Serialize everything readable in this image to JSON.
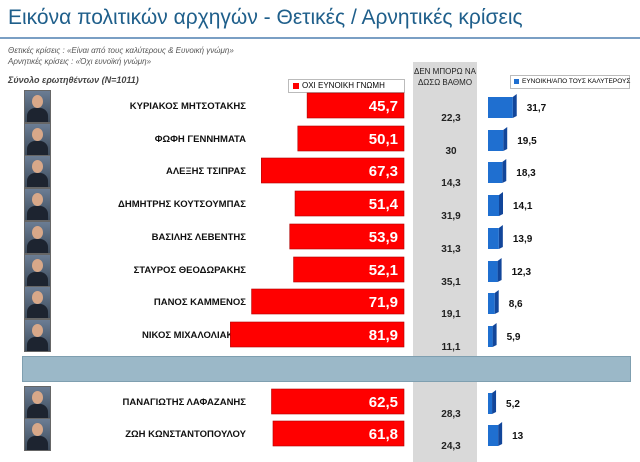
{
  "title": "Εικόνα πολιτικών αρχηγών  - Θετικές / Αρνητικές κρίσεις",
  "notes": [
    "Θετικές κρίσεις : «Είναι από τους καλύτερους & Ευνοική γνώμη»",
    "Αρνητικές κρίσεις : «Όχι ευνοϊκή γνώμη»"
  ],
  "base": "Σύνολο ερωτηθέντων (N=1011)",
  "legend": {
    "negative": "ΟΧΙ ΕΥΝΟΙΚΗ ΓΝΩΜΗ",
    "dk": "ΔΕΝ ΜΠΟΡΩ ΝΑ ΔΩΣΩ ΒΑΘΜΟ",
    "positive": "ΕΥΝΟΙΚΗ/ΑΠΟ ΤΟΥΣ ΚΑΛΥΤΕΡΟΥΣ"
  },
  "colors": {
    "negative": "#ff0000",
    "positive": "#1f6fd0",
    "dk_column": "#d9d9d9",
    "title": "#1f5f8b"
  },
  "icons": [
    "politician-photo"
  ],
  "chart_data": {
    "type": "bar",
    "categories": [
      "ΚΥΡΙΑΚΟΣ ΜΗΤΣΟΤΑΚΗΣ",
      "ΦΩΦΗ ΓΕΝΝΗΜΑΤΑ",
      "ΑΛΕΞΗΣ ΤΣΙΠΡΑΣ",
      "ΔΗΜΗΤΡΗΣ ΚΟΥΤΣΟΥΜΠΑΣ",
      "ΒΑΣΙΛΗΣ ΛΕΒΕΝΤΗΣ",
      "ΣΤΑΥΡΟΣ ΘΕΟΔΩΡΑΚΗΣ",
      "ΠΑΝΟΣ ΚΑΜΜΕΝΟΣ",
      "ΝΙΚΟΣ ΜΙΧΑΛΟΛΙΑΚΟΣ",
      "ΠΑΝΑΓΙΩΤΗΣ ΛΑΦΑΖΑΝΗΣ",
      "ΖΩΗ ΚΩΝΣΤΑΝΤΟΠΟΥΛΟΥ"
    ],
    "series": [
      {
        "name": "ΟΧΙ ΕΥΝΟΙΚΗ ΓΝΩΜΗ",
        "values": [
          45.7,
          50.1,
          67.3,
          51.4,
          53.9,
          52.1,
          71.9,
          81.9,
          62.5,
          61.8
        ],
        "labels": [
          "45,7",
          "50,1",
          "67,3",
          "51,4",
          "53,9",
          "52,1",
          "71,9",
          "81,9",
          "62,5",
          "61,8"
        ]
      },
      {
        "name": "ΔΕΝ ΜΠΟΡΩ ΝΑ ΔΩΣΩ ΒΑΘΜΟ",
        "values": [
          22.3,
          30,
          14.3,
          31.9,
          31.3,
          35.1,
          19.1,
          11.1,
          28.3,
          24.3
        ],
        "labels": [
          "22,3",
          "30",
          "14,3",
          "31,9",
          "31,3",
          "35,1",
          "19,1",
          "11,1",
          "28,3",
          "24,3"
        ]
      },
      {
        "name": "ΕΥΝΟΙΚΗ/ΑΠΟ ΤΟΥΣ ΚΑΛΥΤΕΡΟΥΣ",
        "values": [
          31.7,
          19.5,
          18.3,
          14.1,
          13.9,
          12.3,
          8.6,
          5.9,
          5.2,
          13
        ],
        "labels": [
          "31,7",
          "19,5",
          "18,3",
          "14,1",
          "13,9",
          "12,3",
          "8,6",
          "5,9",
          "5,2",
          "13"
        ]
      }
    ]
  }
}
